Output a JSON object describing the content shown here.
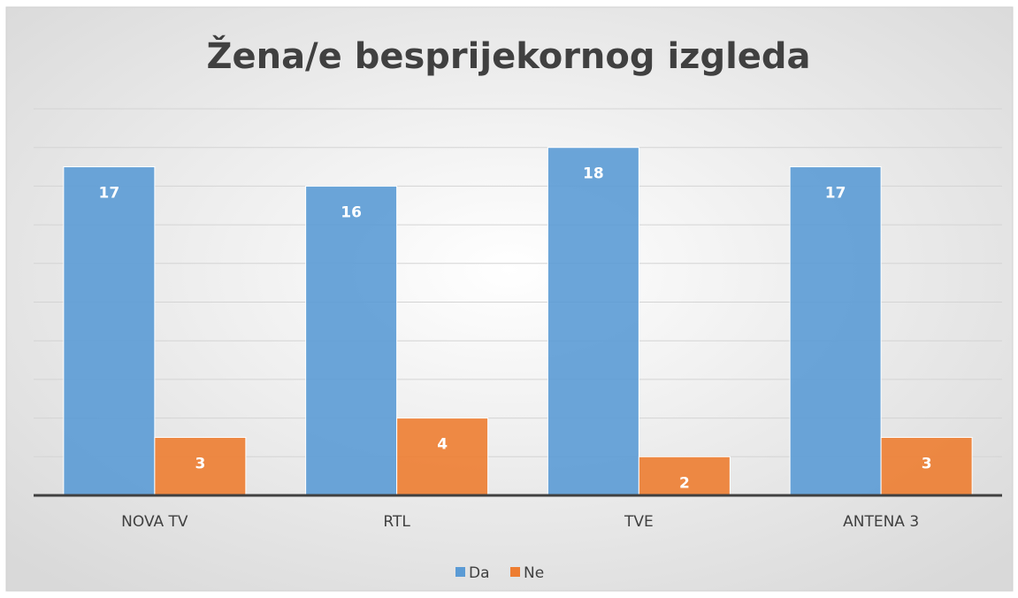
{
  "chart_data": {
    "type": "bar",
    "title": "Žena/e besprijekornog izgleda",
    "categories": [
      "NOVA TV",
      "RTL",
      "TVE",
      "ANTENA 3"
    ],
    "series": [
      {
        "name": "Da",
        "color": "#5b9bd5",
        "values": [
          17,
          16,
          18,
          17
        ]
      },
      {
        "name": "Ne",
        "color": "#ed7d31",
        "values": [
          3,
          4,
          2,
          3
        ]
      }
    ],
    "ylim": [
      0,
      20
    ],
    "yticks": [
      0,
      2,
      4,
      6,
      8,
      10,
      12,
      14,
      16,
      18,
      20
    ],
    "grid": true,
    "legend": "bottom"
  }
}
